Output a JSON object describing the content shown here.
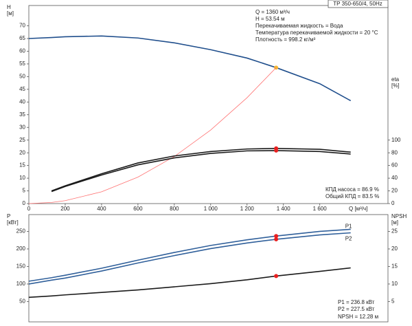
{
  "chart_data": [
    {
      "type": "line",
      "title": "TP 350-650/4, 50Hz",
      "y_label": [
        "H",
        "[м]"
      ],
      "y2_label": [
        "eta",
        "[%]"
      ],
      "x_label": "Q [м³/ч]",
      "annotations": [
        "Q = 1360 м³/ч",
        "H = 53.54 м",
        "Перекачиваемая жидкость = Вода",
        "Температура перекачиваемой жидкости = 20 °C",
        "Плотность = 998.2 кг/м³",
        "КПД насоса = 86.9 %",
        "Общий КПД = 83.5 %"
      ],
      "operating_q": 1360,
      "x": [
        0,
        125,
        200,
        400,
        600,
        800,
        1000,
        1200,
        1360,
        1600,
        1770
      ],
      "xlim": [
        0,
        1975
      ],
      "xticks": [
        0,
        200,
        400,
        600,
        800,
        {
          "value": 1000,
          "label": "1 000"
        },
        {
          "value": 1200,
          "label": "1 200"
        },
        {
          "value": 1400,
          "label": "1 400"
        },
        {
          "value": 1600,
          "label": "1 600"
        }
      ],
      "ylim": [
        0,
        78
      ],
      "yticks": [
        0,
        5,
        10,
        15,
        20,
        25,
        30,
        35,
        40,
        45,
        50,
        55,
        60,
        65,
        70
      ],
      "y2lim": [
        0,
        312
      ],
      "y2ticks": [
        0,
        20,
        40,
        60,
        80,
        100
      ],
      "grid": false,
      "series": [
        {
          "color": "#1f4e8c",
          "marker_color": "#f5b731",
          "values": [
            65,
            65.4,
            65.7,
            66,
            65.2,
            63.3,
            60.6,
            57.3,
            53.54,
            47.2,
            40.5
          ]
        },
        {
          "color": "#ff7070",
          "values": [
            0,
            0.45,
            1.16,
            4.63,
            10.42,
            18.53,
            28.95,
            41.69,
            53.54,
            null,
            null
          ]
        },
        {
          "color": "#1a1a1a",
          "marker_color": "#e82020",
          "axis": "y2",
          "values": [
            null,
            20,
            28,
            47,
            64,
            75,
            82,
            86,
            86.9,
            85.5,
            81
          ]
        },
        {
          "color": "#1a1a1a",
          "marker_color": "#e82020",
          "axis": "y2",
          "values": [
            null,
            19,
            27,
            45,
            61,
            72,
            79,
            83,
            83.5,
            82,
            78
          ]
        }
      ]
    },
    {
      "type": "line",
      "y_label": [
        "P",
        "[кВт]"
      ],
      "y2_label": [
        "NPSH",
        "[м]"
      ],
      "annotations": [
        "P1 = 236.8 кВт",
        "P2 = 227.5 кВт",
        "NPSH = 12.28 м"
      ],
      "operating_q": 1360,
      "x": [
        0,
        125,
        200,
        400,
        600,
        800,
        1000,
        1200,
        1360,
        1600,
        1770
      ],
      "xlim": [
        0,
        1975
      ],
      "ylim": [
        -8,
        298
      ],
      "yticks": [
        50,
        100,
        150,
        200,
        250
      ],
      "y2lim": [
        -0.8,
        29.8
      ],
      "y2ticks": [
        5,
        10,
        15,
        20,
        25
      ],
      "grid": false,
      "series": [
        {
          "name": "P1",
          "color": "#2f5f9a",
          "marker_color": "#e82020",
          "values": [
            108,
            118,
            125,
            145,
            168,
            190,
            210,
            226,
            236.8,
            250,
            256
          ]
        },
        {
          "name": "P2",
          "color": "#2f5f9a",
          "marker_color": "#e82020",
          "values": [
            100,
            111,
            117,
            137,
            160,
            181,
            201,
            217,
            227.5,
            240,
            246
          ]
        },
        {
          "color": "#1a1a1a",
          "marker_color": "#e82020",
          "axis": "y2",
          "values": [
            6.2,
            6.6,
            6.9,
            7.6,
            8.3,
            9.2,
            10.1,
            11.2,
            12.28,
            13.6,
            14.6
          ]
        }
      ]
    }
  ]
}
